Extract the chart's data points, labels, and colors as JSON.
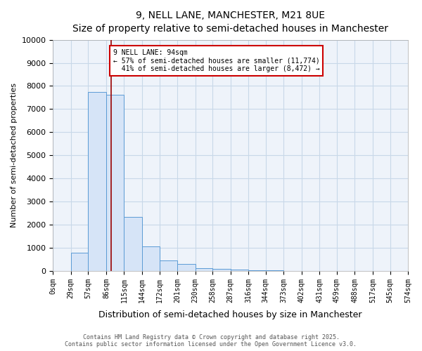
{
  "title": "9, NELL LANE, MANCHESTER, M21 8UE",
  "subtitle": "Size of property relative to semi-detached houses in Manchester",
  "xlabel": "Distribution of semi-detached houses by size in Manchester",
  "ylabel": "Number of semi-detached properties",
  "property_size": 94,
  "property_label": "9 NELL LANE: 94sqm",
  "pct_smaller": 57,
  "pct_larger": 41,
  "n_smaller": 11774,
  "n_larger": 8472,
  "bin_edges": [
    0,
    29,
    57,
    86,
    115,
    144,
    172,
    201,
    230,
    258,
    287,
    316,
    344,
    373,
    402,
    431,
    459,
    488,
    517,
    545,
    574
  ],
  "bin_counts": [
    0,
    800,
    7750,
    7620,
    2350,
    1050,
    450,
    290,
    130,
    100,
    70,
    30,
    20,
    10,
    5,
    3,
    2,
    1,
    1,
    1
  ],
  "bar_facecolor": "#d6e4f7",
  "bar_edgecolor": "#5b9bd5",
  "redline_color": "#990000",
  "annotation_box_color": "#cc0000",
  "grid_color": "#c8d8e8",
  "background_color": "#eef3fa",
  "ylim": [
    0,
    10000
  ],
  "yticks": [
    0,
    1000,
    2000,
    3000,
    4000,
    5000,
    6000,
    7000,
    8000,
    9000,
    10000
  ],
  "footnote1": "Contains HM Land Registry data © Crown copyright and database right 2025.",
  "footnote2": "Contains public sector information licensed under the Open Government Licence v3.0."
}
